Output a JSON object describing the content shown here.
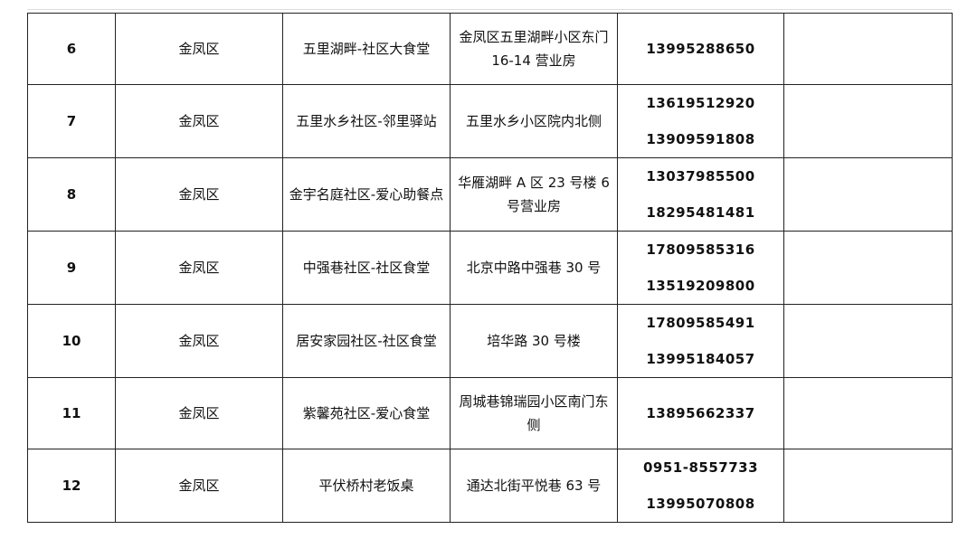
{
  "table": {
    "rows": [
      {
        "no": "6",
        "district": "金凤区",
        "site": "五里湖畔-社区大食堂",
        "address": "金凤区五里湖畔小区东门16-14 营业房",
        "phones": [
          "13995288650"
        ]
      },
      {
        "no": "7",
        "district": "金凤区",
        "site": "五里水乡社区-邻里驿站",
        "address": "五里水乡小区院内北侧",
        "phones": [
          "13619512920",
          "13909591808"
        ]
      },
      {
        "no": "8",
        "district": "金凤区",
        "site": "金宇名庭社区-爱心助餐点",
        "address": "华雁湖畔 A 区 23 号楼 6 号营业房",
        "phones": [
          "13037985500",
          "18295481481"
        ]
      },
      {
        "no": "9",
        "district": "金凤区",
        "site": "中强巷社区-社区食堂",
        "address": "北京中路中强巷 30 号",
        "phones": [
          "17809585316",
          "13519209800"
        ]
      },
      {
        "no": "10",
        "district": "金凤区",
        "site": "居安家园社区-社区食堂",
        "address": "培华路 30 号楼",
        "phones": [
          "17809585491",
          "13995184057"
        ]
      },
      {
        "no": "11",
        "district": "金凤区",
        "site": "紫馨苑社区-爱心食堂",
        "address": "周城巷锦瑞园小区南门东侧",
        "phones": [
          "13895662337"
        ]
      },
      {
        "no": "12",
        "district": "金凤区",
        "site": "平伏桥村老饭桌",
        "address": "通达北街平悦巷 63 号",
        "phones": [
          "0951-8557733",
          "13995070808"
        ]
      }
    ]
  }
}
